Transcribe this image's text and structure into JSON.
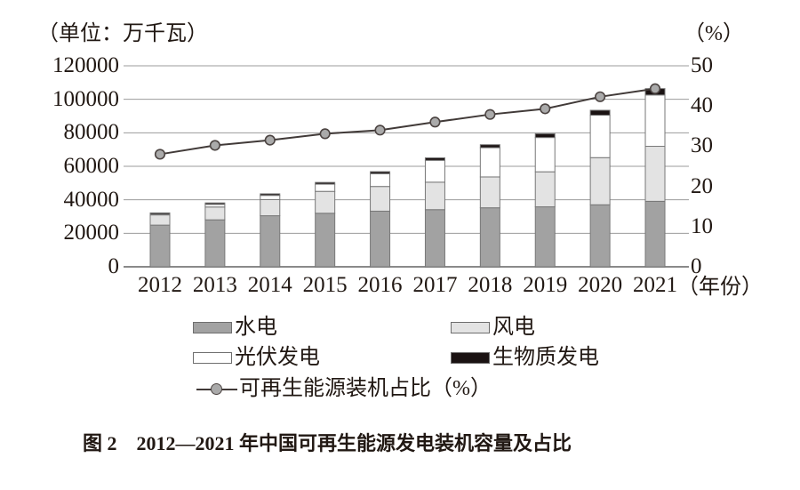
{
  "header": {
    "unit_label_left": "（单位：万千瓦）",
    "unit_label_right": "（%）"
  },
  "x_axis_suffix": "（年份）",
  "caption": "图 2　2012—2021 年中国可再生能源发电装机容量及占比",
  "legend": [
    {
      "key": "hydro",
      "name": "水电"
    },
    {
      "key": "wind",
      "name": "风电"
    },
    {
      "key": "solar",
      "name": "光伏发电"
    },
    {
      "key": "biomass",
      "name": "生物质发电"
    },
    {
      "key": "share",
      "name": "可再生能源装机占比（%）"
    }
  ],
  "colors": {
    "hydro": "#a2a2a2",
    "wind": "#e3e3e3",
    "solar": "#ffffff",
    "biomass": "#1a1212",
    "barBorder": "#787878",
    "grid": "#9b9b9b",
    "axis": "#8a8a8a",
    "line": "#413a38",
    "markerFill": "#aaaaaa",
    "markerStroke": "#4c4442",
    "text": "#211813"
  },
  "chart_data": {
    "type": "bar",
    "subtype": "stacked-bar-with-line",
    "title": "图 2　2012—2021 年中国可再生能源发电装机容量及占比",
    "categories": [
      "2012",
      "2013",
      "2014",
      "2015",
      "2016",
      "2017",
      "2018",
      "2019",
      "2020",
      "2021"
    ],
    "bar_series": [
      {
        "key": "hydro",
        "name": "水电",
        "values": [
          24890,
          28044,
          30486,
          31954,
          33211,
          34119,
          35226,
          35804,
          37016,
          39092
        ]
      },
      {
        "key": "wind",
        "name": "风电",
        "values": [
          6142,
          7652,
          9657,
          13075,
          14747,
          16400,
          18427,
          20915,
          28153,
          32848
        ]
      },
      {
        "key": "solar",
        "name": "光伏发电",
        "values": [
          341,
          1589,
          2486,
          4318,
          7631,
          13042,
          17463,
          20468,
          25343,
          30656
        ]
      },
      {
        "key": "biomass",
        "name": "生物质发电",
        "values": [
          800,
          850,
          950,
          1031,
          1214,
          1488,
          1781,
          2254,
          2952,
          3798
        ]
      }
    ],
    "line_series": {
      "key": "share",
      "name": "可再生能源装机占比（%）",
      "axis": "right",
      "values": [
        28.0,
        30.2,
        31.5,
        33.1,
        34.0,
        36.0,
        37.9,
        39.3,
        42.3,
        44.3
      ]
    },
    "left_axis": {
      "label": "（单位：万千瓦）",
      "ticks": [
        0,
        20000,
        40000,
        60000,
        80000,
        100000,
        120000
      ],
      "lim": [
        0,
        120000
      ]
    },
    "right_axis": {
      "label": "（%）",
      "ticks": [
        0,
        10,
        20,
        30,
        40,
        50
      ],
      "lim": [
        0,
        50
      ]
    },
    "x_axis": {
      "label": "（年份）"
    },
    "grid": true,
    "legend_position": "bottom"
  }
}
